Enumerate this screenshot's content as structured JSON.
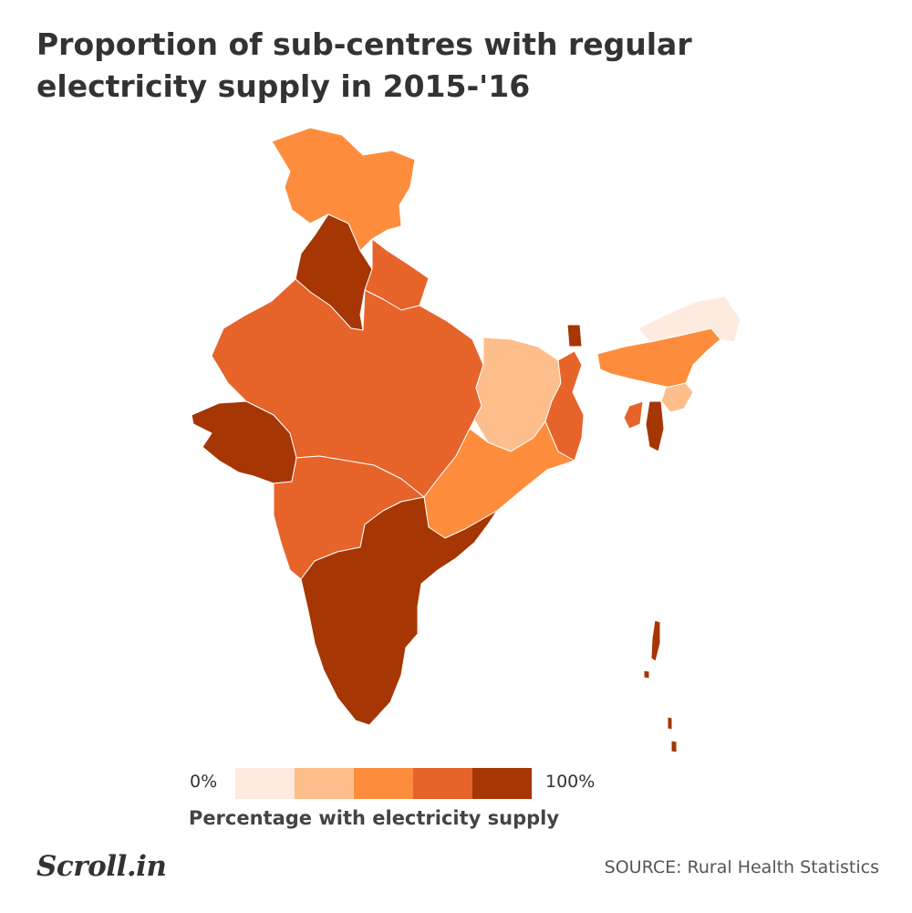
{
  "title": "Proportion of sub-centres with regular electricity supply in 2015-'16",
  "legend": {
    "min_label": "0%",
    "max_label": "100%",
    "title": "Percentage with electricity supply",
    "colors": [
      "#feebe0",
      "#fdbe8c",
      "#fd8d3d",
      "#e6632a",
      "#a63603"
    ]
  },
  "regions": [
    {
      "id": "north-jk",
      "bin": 2
    },
    {
      "id": "punjab-himachal",
      "bin": 4
    },
    {
      "id": "uttarakhand",
      "bin": 3
    },
    {
      "id": "north-west-central",
      "bin": 3
    },
    {
      "id": "bihar-jharkhand",
      "bin": 1
    },
    {
      "id": "odisha-chhattisgarh",
      "bin": 2
    },
    {
      "id": "west-bengal",
      "bin": 3
    },
    {
      "id": "sikkim",
      "bin": 4
    },
    {
      "id": "gujarat",
      "bin": 4
    },
    {
      "id": "maharashtra",
      "bin": 3
    },
    {
      "id": "south",
      "bin": 4
    },
    {
      "id": "north-east",
      "bin": 2
    },
    {
      "id": "arunachal",
      "bin": 0
    },
    {
      "id": "mizoram",
      "bin": 1
    },
    {
      "id": "manipur",
      "bin": 4
    },
    {
      "id": "tripura",
      "bin": 3
    },
    {
      "id": "andaman",
      "bin": 4
    }
  ],
  "logo": "Scroll.in",
  "source": "SOURCE: Rural Health Statistics"
}
